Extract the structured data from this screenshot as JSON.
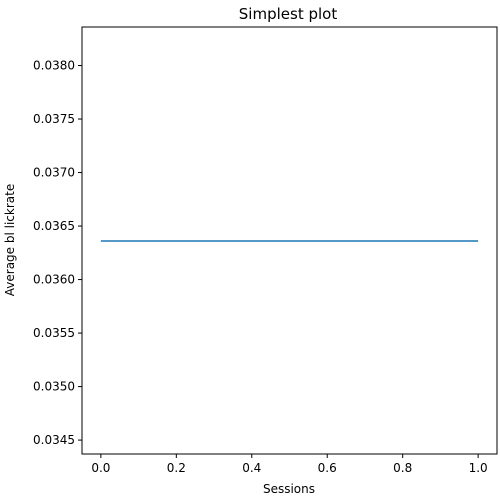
{
  "chart_data": {
    "type": "line",
    "title": "Simplest plot",
    "xlabel": "Sessions",
    "ylabel": "Average bl lickrate",
    "xlim": [
      -0.05,
      1.05
    ],
    "ylim": [
      0.03437,
      0.03836
    ],
    "xticks": [
      0.0,
      0.2,
      0.4,
      0.6,
      0.8,
      1.0
    ],
    "xtick_labels": [
      "0.0",
      "0.2",
      "0.4",
      "0.6",
      "0.8",
      "1.0"
    ],
    "yticks": [
      0.0345,
      0.035,
      0.0355,
      0.036,
      0.0365,
      0.037,
      0.0375,
      0.038
    ],
    "ytick_labels": [
      "0.0345",
      "0.0350",
      "0.0355",
      "0.0360",
      "0.0365",
      "0.0370",
      "0.0375",
      "0.0380"
    ],
    "grid": false,
    "series": [
      {
        "x": [
          0.0,
          1.0
        ],
        "y": [
          0.03636,
          0.03636
        ],
        "color": "#1f77b4"
      }
    ]
  }
}
